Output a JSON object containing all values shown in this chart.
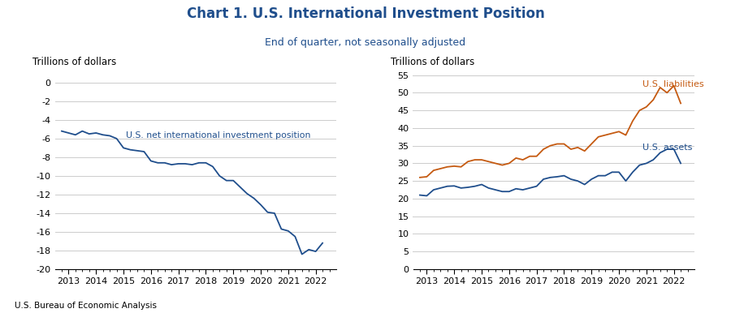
{
  "title": "Chart 1. U.S. International Investment Position",
  "subtitle": "End of quarter, not seasonally adjusted",
  "footer": "U.S. Bureau of Economic Analysis",
  "title_color": "#1f4e8c",
  "subtitle_color": "#1f4e8c",
  "left_ylabel": "Trillions of dollars",
  "left_ylim": [
    -20,
    0
  ],
  "left_yticks": [
    0,
    -2,
    -4,
    -6,
    -8,
    -10,
    -12,
    -14,
    -16,
    -18,
    -20
  ],
  "left_line_color": "#1f4e8c",
  "left_label": "U.S. net international investment position",
  "left_label_color": "#1f4e8c",
  "right_ylabel": "Trillions of dollars",
  "right_ylim": [
    0,
    55
  ],
  "right_yticks": [
    0,
    5,
    10,
    15,
    20,
    25,
    30,
    35,
    40,
    45,
    50,
    55
  ],
  "assets_color": "#1f4e8c",
  "liabilities_color": "#c55a11",
  "assets_label": "U.S. assets",
  "liabilities_label": "U.S. liabilities",
  "net_x": [
    2012.75,
    2013.0,
    2013.25,
    2013.5,
    2013.75,
    2014.0,
    2014.25,
    2014.5,
    2014.75,
    2015.0,
    2015.25,
    2015.5,
    2015.75,
    2016.0,
    2016.25,
    2016.5,
    2016.75,
    2017.0,
    2017.25,
    2017.5,
    2017.75,
    2018.0,
    2018.25,
    2018.5,
    2018.75,
    2019.0,
    2019.25,
    2019.5,
    2019.75,
    2020.0,
    2020.25,
    2020.5,
    2020.75,
    2021.0,
    2021.25,
    2021.5,
    2021.75,
    2022.0,
    2022.25
  ],
  "net_y": [
    -5.2,
    -5.4,
    -5.6,
    -5.2,
    -5.5,
    -5.4,
    -5.6,
    -5.7,
    -6.0,
    -7.0,
    -7.2,
    -7.3,
    -7.4,
    -8.4,
    -8.6,
    -8.6,
    -8.8,
    -8.7,
    -8.7,
    -8.8,
    -8.6,
    -8.6,
    -9.0,
    -10.0,
    -10.5,
    -10.5,
    -11.2,
    -11.9,
    -12.4,
    -13.1,
    -13.9,
    -14.0,
    -15.7,
    -15.9,
    -16.5,
    -18.4,
    -17.9,
    -18.1,
    -17.2
  ],
  "assets_x": [
    2012.75,
    2013.0,
    2013.25,
    2013.5,
    2013.75,
    2014.0,
    2014.25,
    2014.5,
    2014.75,
    2015.0,
    2015.25,
    2015.5,
    2015.75,
    2016.0,
    2016.25,
    2016.5,
    2016.75,
    2017.0,
    2017.25,
    2017.5,
    2017.75,
    2018.0,
    2018.25,
    2018.5,
    2018.75,
    2019.0,
    2019.25,
    2019.5,
    2019.75,
    2020.0,
    2020.25,
    2020.5,
    2020.75,
    2021.0,
    2021.25,
    2021.5,
    2021.75,
    2022.0,
    2022.25
  ],
  "assets_y": [
    21.0,
    20.8,
    22.5,
    23.0,
    23.5,
    23.6,
    23.0,
    23.2,
    23.5,
    24.0,
    23.0,
    22.5,
    22.0,
    22.0,
    22.8,
    22.5,
    23.0,
    23.5,
    25.5,
    26.0,
    26.2,
    26.5,
    25.5,
    25.0,
    24.0,
    25.5,
    26.5,
    26.5,
    27.5,
    27.5,
    25.0,
    27.5,
    29.5,
    30.0,
    31.0,
    33.0,
    34.0,
    34.0,
    30.0
  ],
  "liabilities_x": [
    2012.75,
    2013.0,
    2013.25,
    2013.5,
    2013.75,
    2014.0,
    2014.25,
    2014.5,
    2014.75,
    2015.0,
    2015.25,
    2015.5,
    2015.75,
    2016.0,
    2016.25,
    2016.5,
    2016.75,
    2017.0,
    2017.25,
    2017.5,
    2017.75,
    2018.0,
    2018.25,
    2018.5,
    2018.75,
    2019.0,
    2019.25,
    2019.5,
    2019.75,
    2020.0,
    2020.25,
    2020.5,
    2020.75,
    2021.0,
    2021.25,
    2021.5,
    2021.75,
    2022.0,
    2022.25
  ],
  "liabilities_y": [
    26.0,
    26.2,
    28.0,
    28.5,
    29.0,
    29.2,
    29.0,
    30.5,
    31.0,
    31.0,
    30.5,
    30.0,
    29.5,
    30.0,
    31.5,
    31.0,
    32.0,
    32.0,
    34.0,
    35.0,
    35.5,
    35.5,
    34.0,
    34.5,
    33.5,
    35.5,
    37.5,
    38.0,
    38.5,
    39.0,
    38.0,
    42.0,
    45.0,
    46.0,
    48.0,
    51.5,
    50.0,
    52.0,
    47.0
  ]
}
